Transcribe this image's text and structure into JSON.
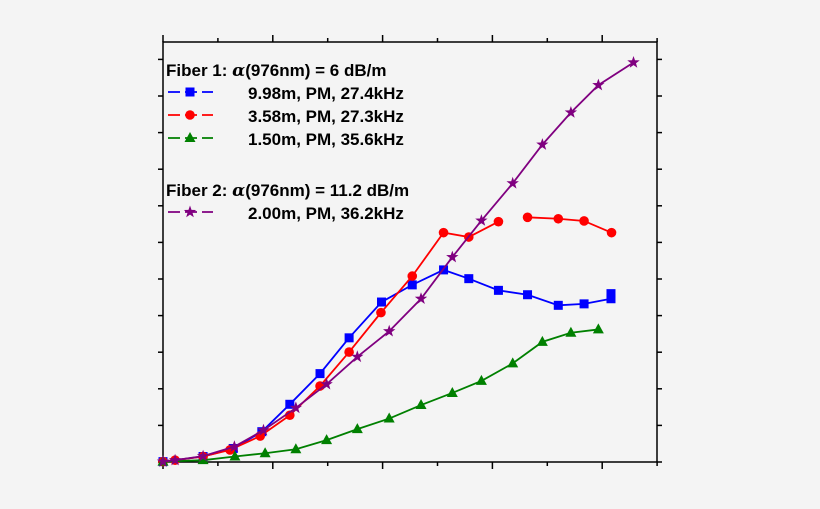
{
  "chart_data": {
    "type": "line",
    "title": "",
    "xlabel": "",
    "ylabel": "",
    "xlim": [
      0,
      9
    ],
    "ylim": [
      0,
      11.5
    ],
    "x_ticks_count": 10,
    "y_ticks_count": 12,
    "tick_labels_shown": false,
    "grid": false,
    "legend_position": "top-left",
    "legend_groups": [
      {
        "heading_prefix": "Fiber 1: ",
        "alpha": "α",
        "heading_suffix": "(976nm) = 6 dB/m"
      },
      {
        "heading_prefix": "Fiber 2: ",
        "alpha": "α",
        "heading_suffix": "(976nm) = 11.2 dB/m"
      }
    ],
    "series": [
      {
        "name": "9.98m, PM, 27.4kHz",
        "group": 0,
        "color": "#0000ff",
        "marker": "square",
        "x": [
          0,
          0.73,
          1.28,
          1.8,
          2.31,
          2.86,
          3.39,
          3.98,
          4.54,
          5.11,
          5.57,
          6.11,
          6.64,
          7.2,
          7.67,
          8.16,
          8.16
        ],
        "y": [
          0.01,
          0.15,
          0.37,
          0.83,
          1.58,
          2.42,
          3.4,
          4.38,
          4.85,
          5.26,
          5.02,
          4.7,
          4.58,
          4.29,
          4.33,
          4.47,
          4.61
        ]
      },
      {
        "name": "3.58m, PM, 27.3kHz",
        "group": 0,
        "color": "#ff0000",
        "marker": "circle",
        "x": [
          0,
          0.22,
          0.73,
          1.22,
          1.77,
          2.31,
          2.86,
          3.39,
          3.97,
          4.54,
          5.11,
          5.57,
          6.11,
          null,
          6.64,
          7.2,
          7.67,
          8.17
        ],
        "y": [
          0.01,
          0.05,
          0.15,
          0.33,
          0.71,
          1.28,
          2.08,
          3.01,
          4.09,
          5.09,
          6.28,
          6.16,
          6.58,
          null,
          6.7,
          6.66,
          6.6,
          6.28
        ]
      },
      {
        "name": "1.50m, PM, 35.6kHz",
        "group": 0,
        "color": "#008000",
        "marker": "triangle",
        "x": [
          0,
          0.73,
          1.31,
          1.86,
          2.42,
          2.98,
          3.54,
          4.12,
          4.7,
          5.27,
          5.8,
          6.37,
          6.91,
          7.43,
          7.93
        ],
        "y": [
          0.01,
          0.05,
          0.15,
          0.24,
          0.35,
          0.6,
          0.9,
          1.19,
          1.56,
          1.89,
          2.22,
          2.7,
          3.29,
          3.54,
          3.63
        ]
      },
      {
        "name": "2.00m, PM, 36.2kHz",
        "group": 1,
        "color": "#800080",
        "marker": "star",
        "x": [
          0,
          0.22,
          0.73,
          1.3,
          1.83,
          2.42,
          2.98,
          3.54,
          4.12,
          4.7,
          5.27,
          5.8,
          6.37,
          6.91,
          7.43,
          7.93,
          8.57
        ],
        "y": [
          0.01,
          0.05,
          0.16,
          0.42,
          0.87,
          1.48,
          2.13,
          2.88,
          3.58,
          4.47,
          5.61,
          6.61,
          7.63,
          8.69,
          9.57,
          10.32,
          10.94
        ]
      }
    ]
  }
}
